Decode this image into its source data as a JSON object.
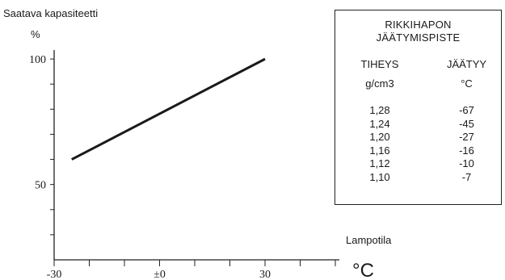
{
  "chart_data": {
    "type": "line",
    "ylabel": "Saatava kapasiteetti",
    "yunit": "%",
    "xlabel": "Lampotila",
    "xunit": "°C",
    "xlim": [
      -30,
      50
    ],
    "ylim": [
      20,
      110
    ],
    "xticks": [
      -30,
      -20,
      -10,
      0,
      10,
      20,
      30,
      40,
      50
    ],
    "xtick_labels": [
      {
        "value": -30,
        "label": "-30"
      },
      {
        "value": 0,
        "label": "±0"
      },
      {
        "value": 30,
        "label": "30"
      }
    ],
    "yticks": [
      30,
      40,
      50,
      60,
      70,
      80,
      90,
      100
    ],
    "ytick_labels": [
      {
        "value": 100,
        "label": "100"
      },
      {
        "value": 50,
        "label": "50"
      }
    ],
    "series": [
      {
        "x": [
          -25,
          30
        ],
        "y": [
          60,
          100
        ]
      }
    ],
    "grid": false,
    "line_color": "#1a1a1a"
  },
  "table": {
    "title_line1": "RIKKIHAPON",
    "title_line2": "JÄÄTYMISPISTE",
    "col1_header": "TIHEYS",
    "col1_unit": "g/cm3",
    "col2_header": "JÄÄTYY",
    "col2_unit": "°C",
    "density": [
      "1,28",
      "1,24",
      "1,20",
      "1,16",
      "1,12",
      "1,10"
    ],
    "freeze": [
      "-67",
      "-45",
      "-27",
      "-16",
      "-10",
      "-7"
    ]
  }
}
